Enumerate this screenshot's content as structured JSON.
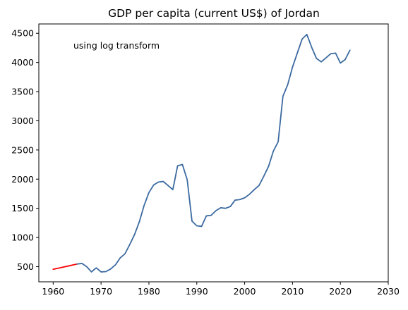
{
  "chart_data": {
    "type": "line",
    "title": "GDP per capita (current US$) of Jordan",
    "annotation": "using log transform",
    "xlabel": "",
    "ylabel": "",
    "xlim": [
      1957,
      2030
    ],
    "ylim": [
      240,
      4660
    ],
    "xticks": [
      1960,
      1970,
      1980,
      1990,
      2000,
      2010,
      2020,
      2030
    ],
    "yticks": [
      500,
      1000,
      1500,
      2000,
      2500,
      3000,
      3500,
      4000,
      4500
    ],
    "grid": false,
    "series": [
      {
        "color": "#ff0000",
        "x": [
          1960,
          1961,
          1962,
          1963,
          1964,
          1965
        ],
        "y": [
          455,
          472,
          490,
          508,
          527,
          545
        ]
      },
      {
        "color": "#3b6aa0",
        "x": [
          1965,
          1966,
          1967,
          1968,
          1969,
          1970,
          1971,
          1972,
          1973,
          1974,
          1975,
          1976,
          1977,
          1978,
          1979,
          1980,
          1981,
          1982,
          1983,
          1984,
          1985,
          1986,
          1987,
          1988,
          1989,
          1990,
          1991,
          1992,
          1993,
          1994,
          1995,
          1996,
          1997,
          1998,
          1999,
          2000,
          2001,
          2002,
          2003,
          2004,
          2005,
          2006,
          2007,
          2008,
          2009,
          2010,
          2011,
          2012,
          2013,
          2014,
          2015,
          2016,
          2017,
          2018,
          2019,
          2020,
          2021,
          2022
        ],
        "y": [
          545,
          555,
          500,
          410,
          480,
          410,
          415,
          460,
          530,
          650,
          720,
          880,
          1050,
          1270,
          1550,
          1770,
          1900,
          1950,
          1960,
          1890,
          1820,
          2230,
          2250,
          1990,
          1280,
          1200,
          1190,
          1370,
          1380,
          1460,
          1510,
          1500,
          1530,
          1640,
          1650,
          1680,
          1740,
          1820,
          1890,
          2050,
          2220,
          2480,
          2640,
          3420,
          3620,
          3920,
          4160,
          4400,
          4480,
          4260,
          4070,
          4010,
          4080,
          4150,
          4160,
          3990,
          4050,
          4210
        ]
      }
    ]
  }
}
